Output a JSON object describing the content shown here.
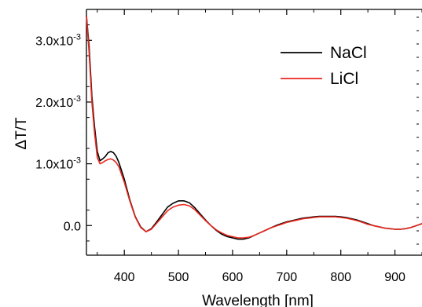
{
  "chart_data": {
    "type": "line",
    "title": "",
    "xlabel": "Wavelength [nm]",
    "ylabel": "ΔT/T",
    "xlim": [
      330,
      950
    ],
    "ylim": [
      -0.00048,
      0.0035
    ],
    "x_ticks": [
      400,
      500,
      600,
      700,
      800,
      900
    ],
    "x_tick_labels": [
      "400",
      "500",
      "600",
      "700",
      "800",
      "900"
    ],
    "y_ticks": [
      0.0,
      0.001,
      0.002,
      0.003
    ],
    "y_tick_labels": [
      "0.0",
      "1.0x10",
      "2.0x10",
      "3.0x10"
    ],
    "y_tick_exponents": [
      "",
      "-3",
      "-3",
      "-3"
    ],
    "grid": false,
    "legend_position": "top-right",
    "series": [
      {
        "name": "NaCl",
        "color": "#000000",
        "x": [
          330,
          335,
          340,
          345,
          350,
          355,
          360,
          365,
          370,
          375,
          380,
          385,
          390,
          400,
          410,
          420,
          430,
          440,
          450,
          460,
          470,
          480,
          490,
          500,
          510,
          520,
          530,
          540,
          550,
          560,
          570,
          580,
          590,
          600,
          610,
          620,
          630,
          640,
          650,
          660,
          670,
          680,
          690,
          700,
          710,
          720,
          730,
          740,
          750,
          760,
          770,
          780,
          790,
          800,
          810,
          820,
          830,
          840,
          850,
          860,
          870,
          880,
          890,
          900,
          910,
          920,
          930,
          940,
          950
        ],
        "y": [
          0.0034,
          0.0029,
          0.0021,
          0.0016,
          0.0012,
          0.00105,
          0.00108,
          0.00112,
          0.00118,
          0.0012,
          0.00118,
          0.00112,
          0.00102,
          0.00075,
          0.00042,
          0.00015,
          -2e-05,
          -0.0001,
          -5e-05,
          6e-05,
          0.00018,
          0.0003,
          0.00036,
          0.0004,
          0.0004,
          0.00037,
          0.00029,
          0.00019,
          9e-05,
          0.0,
          -8e-05,
          -0.00014,
          -0.00018,
          -0.0002,
          -0.00022,
          -0.00022,
          -0.0002,
          -0.00016,
          -0.00012,
          -8e-05,
          -4e-05,
          0.0,
          3e-05,
          6e-05,
          8e-05,
          0.0001,
          0.00012,
          0.00013,
          0.00014,
          0.00015,
          0.00015,
          0.00015,
          0.00015,
          0.00014,
          0.00013,
          0.00011,
          9e-05,
          6e-05,
          3e-05,
          0.0,
          -2e-05,
          -4e-05,
          -5e-05,
          -6e-05,
          -6e-05,
          -5e-05,
          -3e-05,
          0.0,
          3e-05
        ]
      },
      {
        "name": "LiCl",
        "color": "#e8281e",
        "x": [
          330,
          335,
          340,
          345,
          350,
          355,
          360,
          365,
          370,
          375,
          380,
          385,
          390,
          400,
          410,
          420,
          430,
          440,
          450,
          460,
          470,
          480,
          490,
          500,
          510,
          520,
          530,
          540,
          550,
          560,
          570,
          580,
          590,
          600,
          610,
          620,
          630,
          640,
          650,
          660,
          670,
          680,
          690,
          700,
          710,
          720,
          730,
          740,
          750,
          760,
          770,
          780,
          790,
          800,
          810,
          820,
          830,
          840,
          850,
          860,
          870,
          880,
          890,
          900,
          910,
          920,
          930,
          940,
          950
        ],
        "y": [
          0.0034,
          0.0028,
          0.002,
          0.0015,
          0.0011,
          0.001,
          0.00102,
          0.00105,
          0.00107,
          0.00108,
          0.00106,
          0.00102,
          0.00095,
          0.0007,
          0.0004,
          0.00014,
          -3e-05,
          -0.0001,
          -6e-05,
          4e-05,
          0.00014,
          0.00024,
          0.0003,
          0.00033,
          0.00034,
          0.00032,
          0.00026,
          0.00017,
          8e-05,
          0.0,
          -7e-05,
          -0.00012,
          -0.00016,
          -0.00018,
          -0.0002,
          -0.0002,
          -0.00019,
          -0.00016,
          -0.00012,
          -8e-05,
          -4e-05,
          -1e-05,
          2e-05,
          5e-05,
          7e-05,
          9e-05,
          0.00011,
          0.00012,
          0.00013,
          0.00014,
          0.00014,
          0.00014,
          0.00014,
          0.00013,
          0.00012,
          0.0001,
          8e-05,
          5e-05,
          2e-05,
          0.0,
          -2e-05,
          -4e-05,
          -5e-05,
          -6e-05,
          -6e-05,
          -5e-05,
          -3e-05,
          0.0,
          3e-05
        ]
      }
    ]
  }
}
